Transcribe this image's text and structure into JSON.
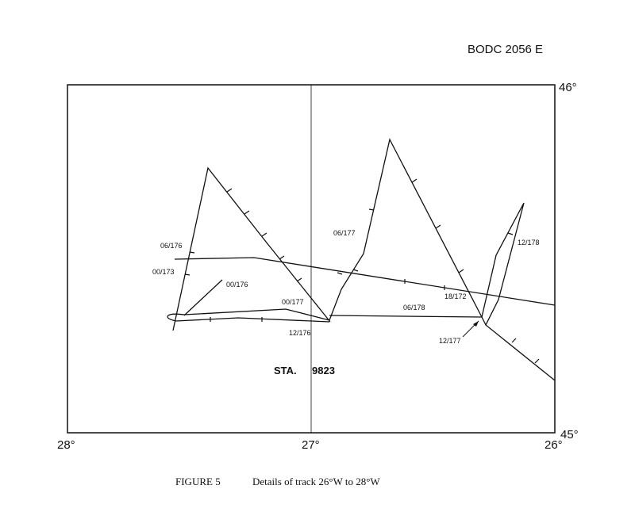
{
  "header": {
    "reference": "BODC 2056 E"
  },
  "axes": {
    "lat_top": "46°",
    "lat_bottom": "45°",
    "lon_left": "28°",
    "lon_mid": "27°",
    "lon_right": "26°"
  },
  "station": {
    "label": "STA.",
    "number": "9823"
  },
  "track_labels": [
    "06/176",
    "00/173",
    "00/176",
    "00/177",
    "12/176",
    "06/177",
    "06/178",
    "18/172",
    "12/177",
    "12/178"
  ],
  "caption": {
    "figure": "FIGURE 5",
    "text": "Details of track 26°W to 28°W"
  }
}
